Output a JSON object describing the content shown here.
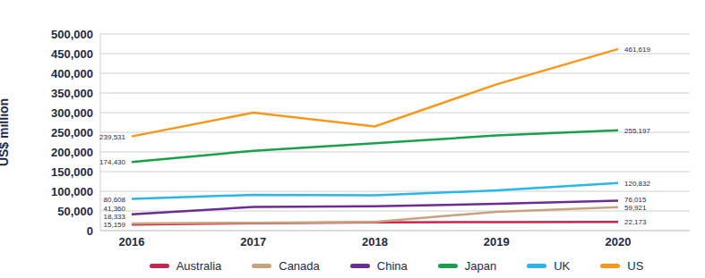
{
  "chart_data": {
    "type": "line",
    "y_label": "US$ million",
    "categories": [
      "2016",
      "2017",
      "2018",
      "2019",
      "2020"
    ],
    "series": [
      {
        "name": "Australia",
        "color": "#c7254e",
        "values": [
          15159,
          19000,
          21000,
          21500,
          22173
        ],
        "value_labels": [
          "15,159",
          null,
          null,
          null,
          "22,173"
        ]
      },
      {
        "name": "Canada",
        "color": "#c8a27c",
        "values": [
          18333,
          20000,
          22000,
          48000,
          59921
        ],
        "value_labels": [
          "18,333",
          null,
          null,
          null,
          "59,921"
        ]
      },
      {
        "name": "China",
        "color": "#6b2d8f",
        "values": [
          41360,
          60000,
          62000,
          68000,
          76015
        ],
        "value_labels": [
          "41,360",
          null,
          null,
          null,
          "76,015"
        ]
      },
      {
        "name": "Japan",
        "color": "#1a9f4b",
        "values": [
          174430,
          203000,
          222000,
          242000,
          255197
        ],
        "value_labels": [
          "174,430",
          null,
          null,
          null,
          "255,197"
        ]
      },
      {
        "name": "UK",
        "color": "#29b6e8",
        "values": [
          80608,
          91000,
          90000,
          102000,
          120832
        ],
        "value_labels": [
          "80,608",
          null,
          null,
          null,
          "120,832"
        ]
      },
      {
        "name": "US",
        "color": "#f7981d",
        "values": [
          239531,
          300000,
          265000,
          372000,
          461619
        ],
        "value_labels": [
          "239,531",
          null,
          null,
          null,
          "461,619"
        ]
      }
    ],
    "ylim": [
      0,
      500000
    ],
    "yticks": [
      0,
      {
        "value": 50000,
        "label": "50,000"
      },
      {
        "value": 100000,
        "label": "100,000"
      },
      {
        "value": 150000,
        "label": "150,000"
      },
      {
        "value": 200000,
        "label": "200,000"
      },
      {
        "value": 250000,
        "label": "250,000"
      },
      {
        "value": 300000,
        "label": "300,000"
      },
      {
        "value": 350000,
        "label": "350,000"
      },
      {
        "value": 400000,
        "label": "400,000"
      },
      {
        "value": 450000,
        "label": "450,000"
      },
      {
        "value": 500000,
        "label": "500,000"
      }
    ],
    "grid": true,
    "legend": "bottom",
    "data_labels": true
  }
}
